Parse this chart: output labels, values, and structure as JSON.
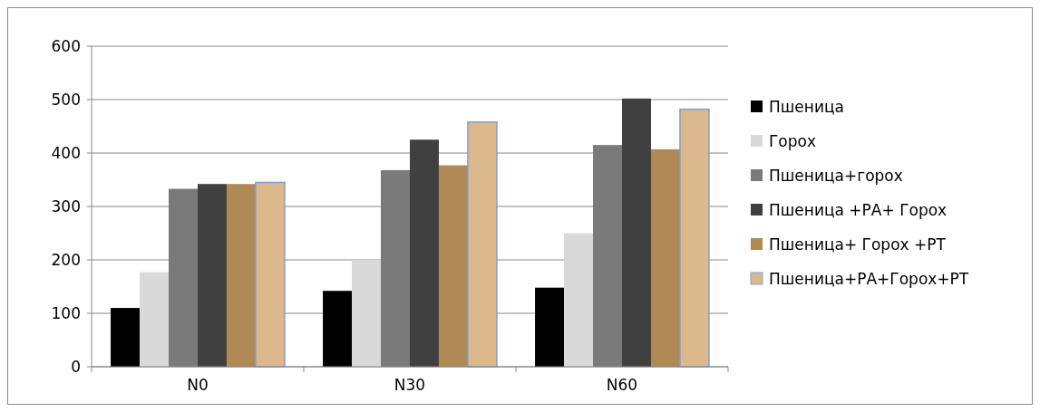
{
  "chart_data": {
    "type": "bar",
    "categories": [
      "N0",
      "N30",
      "N60"
    ],
    "series": [
      {
        "name": "Пшеница",
        "color": "#000000",
        "values": [
          110,
          142,
          148
        ]
      },
      {
        "name": "Горох",
        "color": "#d9d9d9",
        "values": [
          177,
          200,
          250
        ]
      },
      {
        "name": "Пшеница+горох",
        "color": "#7a7a7a",
        "values": [
          333,
          368,
          415
        ]
      },
      {
        "name": "Пшеница +РА+ Горох",
        "color": "#404040",
        "values": [
          342,
          425,
          502
        ]
      },
      {
        "name": "Пшеница+ Горох +РТ",
        "color": "#b08a55",
        "values": [
          342,
          377,
          407
        ]
      },
      {
        "name": "Пшеница+РА+Горох+РТ",
        "color": "#dcb98c",
        "values": [
          345,
          458,
          482
        ]
      }
    ],
    "ylim": [
      0,
      600
    ],
    "yticks": [
      0,
      100,
      200,
      300,
      400,
      500,
      600
    ],
    "grid": "y",
    "legend": "right"
  }
}
